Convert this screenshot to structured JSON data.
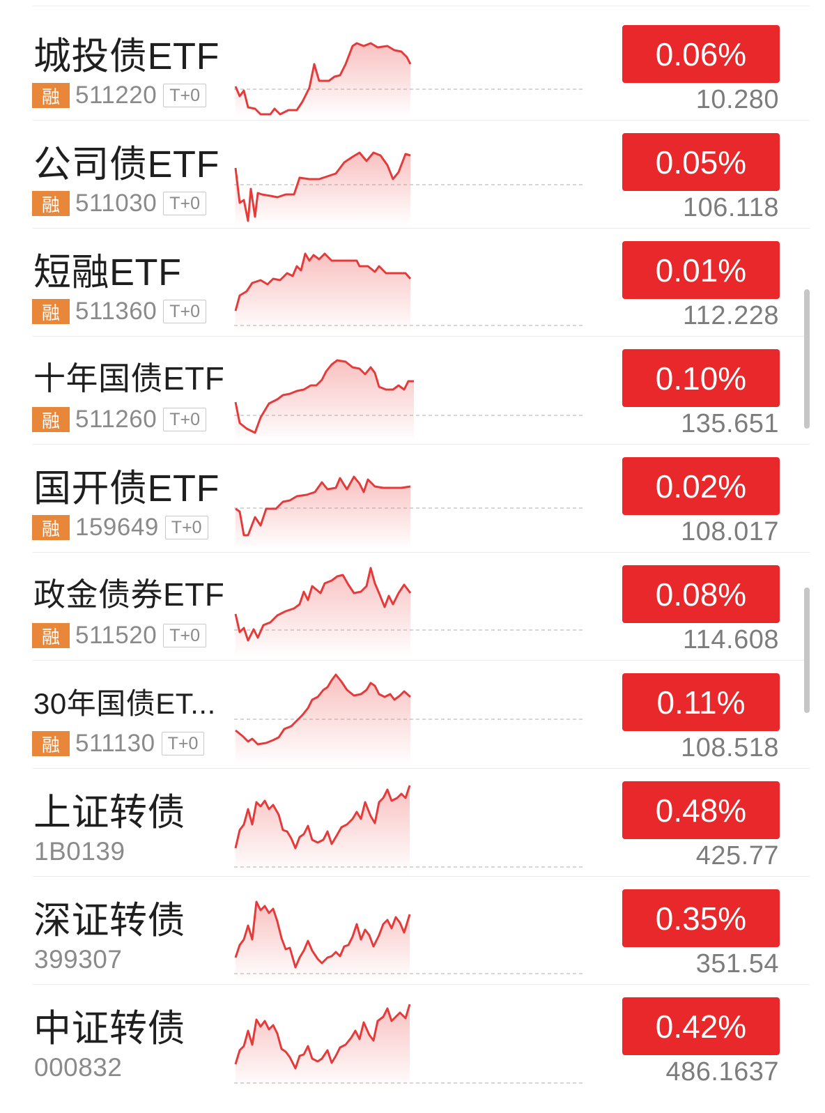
{
  "colors": {
    "accent_red": "#e8282b",
    "rong_badge": "#e8873a",
    "line": "#e53a3a",
    "text_gray": "#8a8a8a"
  },
  "rows": [
    {
      "name": "城投债ETF",
      "badge": "融",
      "code": "511220",
      "tag": "T+0",
      "change": "0.06%",
      "price": "10.280"
    },
    {
      "name": "公司债ETF",
      "badge": "融",
      "code": "511030",
      "tag": "T+0",
      "change": "0.05%",
      "price": "106.118"
    },
    {
      "name": "短融ETF",
      "badge": "融",
      "code": "511360",
      "tag": "T+0",
      "change": "0.01%",
      "price": "112.228"
    },
    {
      "name": "十年国债ETF",
      "badge": "融",
      "code": "511260",
      "tag": "T+0",
      "change": "0.10%",
      "price": "135.651"
    },
    {
      "name": "国开债ETF",
      "badge": "融",
      "code": "159649",
      "tag": "T+0",
      "change": "0.02%",
      "price": "108.017"
    },
    {
      "name": "政金债券ETF",
      "badge": "融",
      "code": "511520",
      "tag": "T+0",
      "change": "0.08%",
      "price": "114.608"
    },
    {
      "name": "30年国债ET...",
      "badge": "融",
      "code": "511130",
      "tag": "T+0",
      "change": "0.11%",
      "price": "108.518"
    },
    {
      "name": "上证转债",
      "badge": "",
      "code": "1B0139",
      "tag": "",
      "change": "0.48%",
      "price": "425.77"
    },
    {
      "name": "深证转债",
      "badge": "",
      "code": "399307",
      "tag": "",
      "change": "0.35%",
      "price": "351.54"
    },
    {
      "name": "中证转债",
      "badge": "",
      "code": "000832",
      "tag": "",
      "change": "0.42%",
      "price": "486.1637"
    }
  ]
}
